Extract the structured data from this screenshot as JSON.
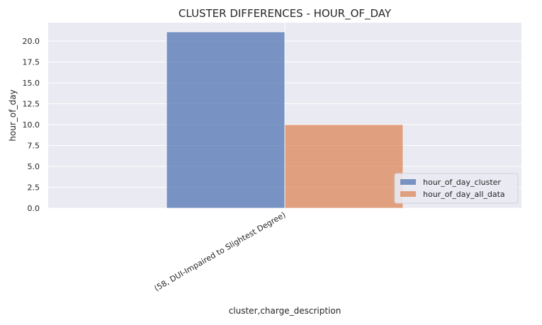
{
  "chart_data": {
    "type": "bar",
    "title": "CLUSTER DIFFERENCES  -  HOUR_OF_DAY",
    "xlabel": "cluster,charge_description",
    "ylabel": "hour_of_day",
    "categories": [
      "(58, DUI-Impaired to Slightest Degree)"
    ],
    "series": [
      {
        "name": "hour_of_day_cluster",
        "values": [
          21.1
        ],
        "color": "#4C72B0"
      },
      {
        "name": "hour_of_day_all_data",
        "values": [
          10.0
        ],
        "color": "#DD8452"
      }
    ],
    "ylim": [
      0,
      22.2
    ],
    "yticks": [
      "0.0",
      "2.5",
      "5.0",
      "7.5",
      "10.0",
      "12.5",
      "15.0",
      "17.5",
      "20.0"
    ],
    "grid": true,
    "legend_position": "lower-right",
    "background_color": "#EAEAF2"
  }
}
